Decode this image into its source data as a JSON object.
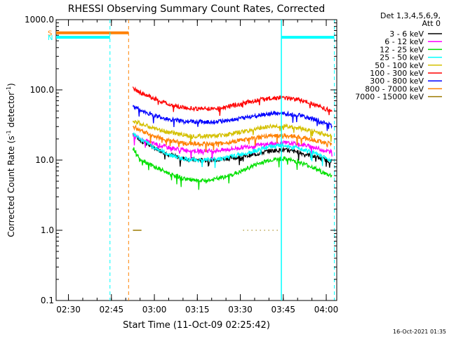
{
  "chart_data": {
    "type": "line",
    "title": "RHESSI Observing Summary Count Rates, Corrected",
    "xlabel": "Start Time (11-Oct-09 02:25:42)",
    "ylabel_main": "Corrected Count Rate (s",
    "ylabel_sup": "-1",
    "ylabel_end": " detector",
    "ylabel_sup2": "-1",
    "ylabel_close": ")",
    "timestamp": "16-Oct-2021 01:35",
    "y_scale": "log",
    "ylim": [
      0.1,
      1000
    ],
    "xlim": [
      "02:25:42",
      "04:03:40"
    ],
    "grid": false,
    "legend_placement": "right",
    "legend_header": [
      "Det 1,3,4,5,6,9,",
      "Att 0"
    ],
    "x_ticks": [
      {
        "label": "02:30",
        "t": "02:30"
      },
      {
        "label": "02:45",
        "t": "02:45"
      },
      {
        "label": "03:00",
        "t": "03:00"
      },
      {
        "label": "03:15",
        "t": "03:15"
      },
      {
        "label": "03:30",
        "t": "03:30"
      },
      {
        "label": "03:45",
        "t": "03:45"
      },
      {
        "label": "04:00",
        "t": "04:00"
      }
    ],
    "y_ticks": [
      {
        "label": "0.1",
        "v": 0.1
      },
      {
        "label": "1.0",
        "v": 1
      },
      {
        "label": "10.0",
        "v": 10
      },
      {
        "label": "100.0",
        "v": 100
      },
      {
        "label": "1000.0",
        "v": 1000
      }
    ],
    "series": [
      {
        "name": "3 - 6 keV",
        "color": "#000000",
        "times": [
          "02:52:30",
          "02:55",
          "03:00",
          "03:05",
          "03:10",
          "03:15",
          "03:20",
          "03:25",
          "03:30",
          "03:35",
          "03:40",
          "03:45",
          "03:50",
          "03:55",
          "04:00",
          "04:02"
        ],
        "values": [
          24,
          19,
          15,
          12,
          10.5,
          10,
          10,
          10.5,
          11,
          12,
          13.5,
          14,
          13,
          11.5,
          10,
          9.5
        ]
      },
      {
        "name": "6 - 12 keV",
        "color": "#ff00ff",
        "times": [
          "02:52:30",
          "02:55",
          "03:00",
          "03:05",
          "03:10",
          "03:15",
          "03:20",
          "03:25",
          "03:30",
          "03:35",
          "03:40",
          "03:45",
          "03:50",
          "03:55",
          "04:00",
          "04:02"
        ],
        "values": [
          23,
          20,
          17,
          15,
          14,
          13.5,
          13.5,
          14,
          15,
          16,
          17,
          17.5,
          17,
          15.5,
          13.5,
          13
        ]
      },
      {
        "name": "12 - 25 keV",
        "color": "#00e000",
        "times": [
          "02:52:30",
          "02:55",
          "03:00",
          "03:05",
          "03:10",
          "03:15",
          "03:20",
          "03:25",
          "03:30",
          "03:35",
          "03:40",
          "03:45",
          "03:50",
          "03:55",
          "04:00",
          "04:02"
        ],
        "values": [
          15,
          10.5,
          8,
          6.5,
          5.5,
          5,
          5.2,
          5.8,
          6.8,
          8.5,
          10,
          10.5,
          9.5,
          8,
          6.3,
          6
        ]
      },
      {
        "name": "25 - 50 keV",
        "color": "#00ffff",
        "times": [
          "02:52:30",
          "02:55",
          "03:00",
          "03:05",
          "03:10",
          "03:15",
          "03:20",
          "03:25",
          "03:30",
          "03:35",
          "03:40",
          "03:45",
          "03:50",
          "03:55",
          "04:00",
          "04:02"
        ],
        "values": [
          24,
          20,
          15,
          12,
          10.5,
          10,
          10.2,
          10.8,
          12,
          13.5,
          15.5,
          16,
          15,
          13,
          10.5,
          10
        ]
      },
      {
        "name": "50 - 100 keV",
        "color": "#d4c000",
        "times": [
          "02:52:30",
          "02:55",
          "03:00",
          "03:05",
          "03:10",
          "03:15",
          "03:20",
          "03:25",
          "03:30",
          "03:35",
          "03:40",
          "03:45",
          "03:50",
          "03:55",
          "04:00",
          "04:02"
        ],
        "values": [
          37,
          33,
          28,
          25,
          23,
          22,
          22,
          23,
          25,
          27.5,
          30,
          30.5,
          29,
          26,
          23,
          22
        ]
      },
      {
        "name": "100 - 300 keV",
        "color": "#ff0000",
        "times": [
          "02:52:30",
          "02:55",
          "03:00",
          "03:05",
          "03:10",
          "03:15",
          "03:20",
          "03:25",
          "03:30",
          "03:35",
          "03:40",
          "03:45",
          "03:50",
          "03:55",
          "04:00",
          "04:02"
        ],
        "values": [
          105,
          92,
          75,
          62,
          56,
          54,
          54,
          57,
          63,
          70,
          76,
          77,
          73,
          64,
          53,
          50
        ]
      },
      {
        "name": "300 - 800 keV",
        "color": "#0000ff",
        "times": [
          "02:52:30",
          "02:55",
          "03:00",
          "03:05",
          "03:10",
          "03:15",
          "03:20",
          "03:25",
          "03:30",
          "03:35",
          "03:40",
          "03:45",
          "03:50",
          "03:55",
          "04:00",
          "04:02"
        ],
        "values": [
          60,
          51,
          43,
          38,
          35.5,
          35,
          35,
          36.5,
          39,
          42.5,
          45.5,
          46,
          44,
          39,
          33,
          31
        ]
      },
      {
        "name": "800 - 7000 keV",
        "color": "#ff8000",
        "times": [
          "02:52:30",
          "02:55",
          "03:00",
          "03:05",
          "03:10",
          "03:15",
          "03:20",
          "03:25",
          "03:30",
          "03:35",
          "03:40",
          "03:45",
          "03:50",
          "03:55",
          "04:00",
          "04:02"
        ],
        "values": [
          30,
          27,
          22,
          19,
          17.5,
          17,
          17,
          17.5,
          19,
          20.5,
          22,
          22.5,
          21.5,
          19.5,
          17.5,
          17
        ]
      },
      {
        "name": "7000 - 15000 keV",
        "color": "#9c7a00",
        "segments": [
          {
            "times": [
              "02:52:30",
              "02:55:30"
            ],
            "values": [
              1.0,
              1.0
            ]
          },
          {
            "times": [
              "03:31",
              "03:43"
            ],
            "values": [
              1.0,
              1.0
            ],
            "dotted": true
          }
        ]
      }
    ],
    "annotations": {
      "bars": [
        {
          "label": "S",
          "color": "#ff8000",
          "t0": "02:25:42",
          "t1": "02:51:00",
          "value": 650,
          "label_color": "#ff8000"
        },
        {
          "label": "N",
          "color": "#00ffff",
          "t0": "02:25:42",
          "t1": "02:44:30",
          "value": 560,
          "label_color": "#00ffff"
        },
        {
          "label": "",
          "color": "#00ffff",
          "t0": "03:44:20",
          "t1": "04:02:50",
          "value": 560,
          "label_color": "#00ffff"
        }
      ],
      "solid_vlines": [
        {
          "t": "03:44:20",
          "color": "#00ffff"
        }
      ],
      "dashed_vlines": [
        {
          "t": "02:44:30",
          "color": "#00ffff"
        },
        {
          "t": "02:51:00",
          "color": "#ff8000"
        },
        {
          "t": "04:02:50",
          "color": "#00ffff"
        }
      ]
    }
  }
}
